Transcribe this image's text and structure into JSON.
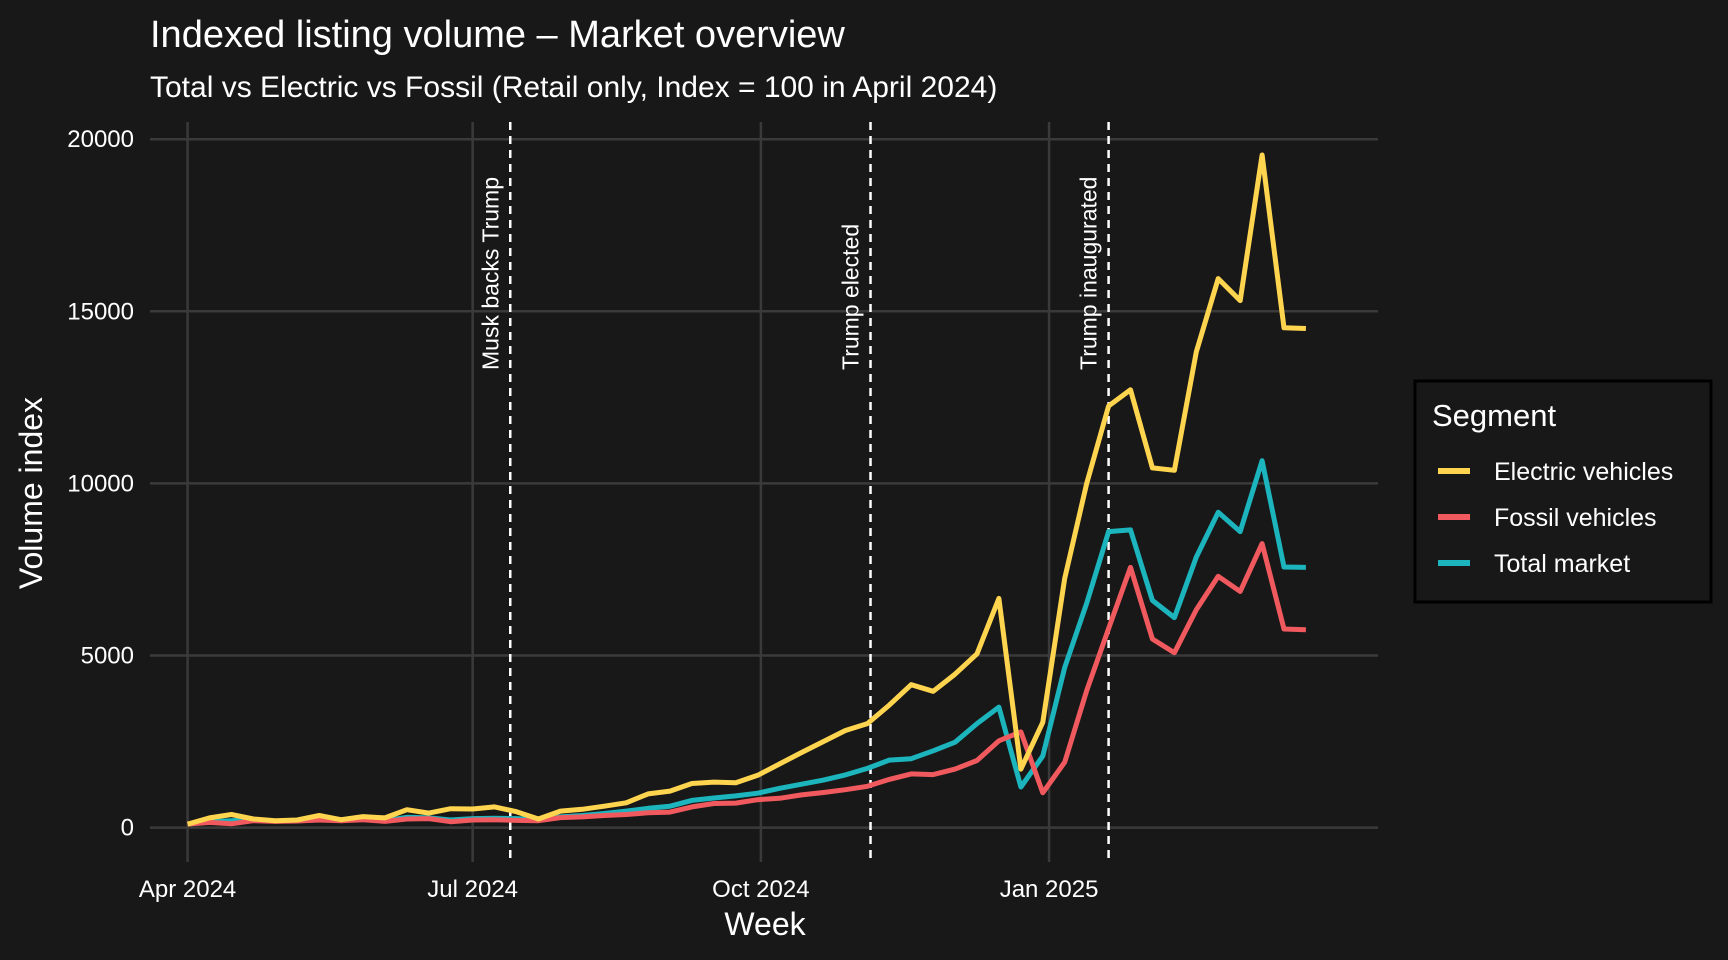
{
  "chart_data": {
    "type": "line",
    "title": "Indexed listing volume – Market overview",
    "subtitle": "Total vs Electric vs Fossil (Retail only, Index = 100 in April 2024)",
    "xlabel": "Week",
    "ylabel": "Volume index",
    "x_axis_kind": "date",
    "ylim": [
      -1000,
      20500
    ],
    "y_ticks": [
      0,
      5000,
      10000,
      15000,
      20000
    ],
    "y_tick_labels": [
      "0",
      "5000",
      "10000",
      "15000",
      "20000"
    ],
    "x_ticks": [
      "2024-04-01",
      "2024-07-01",
      "2024-10-01",
      "2025-01-01"
    ],
    "x_tick_labels": [
      "Apr 2024",
      "Jul 2024",
      "Oct 2024",
      "Jan 2025"
    ],
    "xlim": [
      "2024-03-20",
      "2025-04-16"
    ],
    "grid": true,
    "legend": {
      "title": "Segment",
      "position": "right",
      "entries": [
        "Electric vehicles",
        "Fossil vehicles",
        "Total market"
      ]
    },
    "events": [
      {
        "date": "2024-07-13",
        "label": "Musk backs Trump"
      },
      {
        "date": "2024-11-05",
        "label": "Trump elected"
      },
      {
        "date": "2025-01-20",
        "label": "Trump inaugurated"
      }
    ],
    "x": [
      "2024-04-01",
      "2024-04-08",
      "2024-04-15",
      "2024-04-22",
      "2024-04-29",
      "2024-05-06",
      "2024-05-13",
      "2024-05-20",
      "2024-05-27",
      "2024-06-03",
      "2024-06-10",
      "2024-06-17",
      "2024-06-24",
      "2024-07-01",
      "2024-07-08",
      "2024-07-15",
      "2024-07-22",
      "2024-07-29",
      "2024-08-05",
      "2024-08-12",
      "2024-08-19",
      "2024-08-26",
      "2024-09-02",
      "2024-09-09",
      "2024-09-16",
      "2024-09-23",
      "2024-09-30",
      "2024-10-07",
      "2024-10-14",
      "2024-10-21",
      "2024-10-28",
      "2024-11-04",
      "2024-11-11",
      "2024-11-18",
      "2024-11-25",
      "2024-12-02",
      "2024-12-09",
      "2024-12-16",
      "2024-12-23",
      "2024-12-30",
      "2025-01-06",
      "2025-01-13",
      "2025-01-20",
      "2025-01-27",
      "2025-02-03",
      "2025-02-10",
      "2025-02-17",
      "2025-02-24",
      "2025-03-03",
      "2025-03-10",
      "2025-03-17",
      "2025-03-24"
    ],
    "series": [
      {
        "name": "Electric vehicles",
        "color": "#FFD54F",
        "values": [
          100,
          280,
          380,
          250,
          200,
          220,
          350,
          230,
          320,
          280,
          520,
          420,
          550,
          540,
          600,
          460,
          250,
          480,
          530,
          620,
          720,
          980,
          1060,
          1280,
          1320,
          1300,
          1520,
          1850,
          2180,
          2500,
          2820,
          3020,
          3560,
          4150,
          3960,
          4460,
          5050,
          6660,
          1700,
          3060,
          7240,
          10000,
          12250,
          12720,
          10450,
          10380,
          13820,
          15950,
          15310,
          19540,
          14520,
          14500
        ]
      },
      {
        "name": "Fossil vehicles",
        "color": "#F05A5E",
        "values": [
          100,
          150,
          110,
          200,
          180,
          190,
          220,
          200,
          230,
          180,
          250,
          260,
          170,
          220,
          230,
          210,
          200,
          290,
          310,
          350,
          380,
          430,
          450,
          600,
          700,
          710,
          810,
          850,
          950,
          1020,
          1100,
          1200,
          1400,
          1560,
          1540,
          1700,
          1950,
          2520,
          2780,
          1010,
          1900,
          3980,
          5780,
          7560,
          5480,
          5080,
          6330,
          7300,
          6860,
          8250,
          5770,
          5750
        ]
      },
      {
        "name": "Total market",
        "color": "#1CB5BD",
        "values": [
          100,
          170,
          200,
          230,
          190,
          200,
          230,
          210,
          250,
          200,
          300,
          280,
          220,
          260,
          270,
          260,
          230,
          310,
          350,
          410,
          480,
          560,
          620,
          790,
          860,
          920,
          1000,
          1140,
          1260,
          1380,
          1530,
          1720,
          1960,
          2000,
          2230,
          2480,
          3020,
          3500,
          1180,
          2080,
          4650,
          6520,
          8600,
          8650,
          6600,
          6100,
          7860,
          9160,
          8600,
          10660,
          7570,
          7560
        ]
      }
    ]
  }
}
